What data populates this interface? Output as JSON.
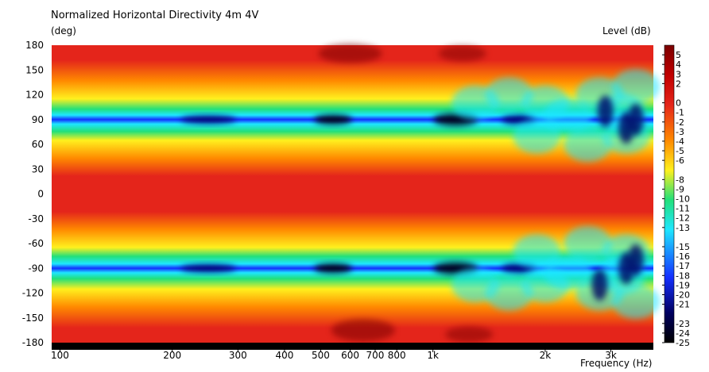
{
  "chart_data": {
    "type": "heatmap",
    "title": "Normalized Horizontal Directivity 4m 4V",
    "ylabel_unit": "(deg)",
    "colorbar_label": "Level  (dB)",
    "xlabel": "Frequency  (Hz)",
    "x_scale": "log",
    "xlim": [
      95,
      3900
    ],
    "ylim": [
      -180,
      180
    ],
    "y_ticks": [
      180,
      150,
      120,
      90,
      60,
      30,
      0,
      -30,
      -60,
      -90,
      -120,
      -150,
      -180
    ],
    "y_tick_labels": [
      "180",
      "150",
      "120",
      "90",
      "60",
      "30",
      "0",
      "-30",
      "-60",
      "-90",
      "-120",
      "-150",
      "-180"
    ],
    "x_ticks": [
      100,
      200,
      300,
      400,
      500,
      600,
      700,
      800,
      1000,
      2000,
      3000
    ],
    "x_tick_labels": [
      "100",
      "200",
      "300",
      "400",
      "500",
      "600",
      "700",
      "800",
      "1k",
      "2k",
      "3k"
    ],
    "colorbar_ticks": [
      5,
      4,
      3,
      2,
      0,
      -1,
      -2,
      -3,
      -4,
      -5,
      -6,
      -8,
      -9,
      -10,
      -11,
      -12,
      -13,
      -15,
      -16,
      -17,
      -18,
      -19,
      -20,
      -21,
      -23,
      -24,
      -25
    ],
    "colorbar_tick_labels": [
      "5",
      "4",
      "3",
      "2",
      "0",
      "-1",
      "-2",
      "-3",
      "-4",
      "-5",
      "-6",
      "-8",
      "-9",
      "-10",
      "-11",
      "-12",
      "-13",
      "-15",
      "-16",
      "-17",
      "-18",
      "-19",
      "-20",
      "-21",
      "-23",
      "-24",
      "-25"
    ],
    "colorbar_range": [
      -25,
      6
    ],
    "null_angles_deg": [
      90,
      -90
    ],
    "grid": false,
    "colors": {
      "top": "#7a0000",
      "red": "#e4251b",
      "orange": "#ff8a00",
      "yellow": "#fff01e",
      "green": "#22e07a",
      "cyan": "#1ee6ff",
      "blue": "#1430ff",
      "navy": "#000060",
      "bottom": "#000000"
    }
  }
}
